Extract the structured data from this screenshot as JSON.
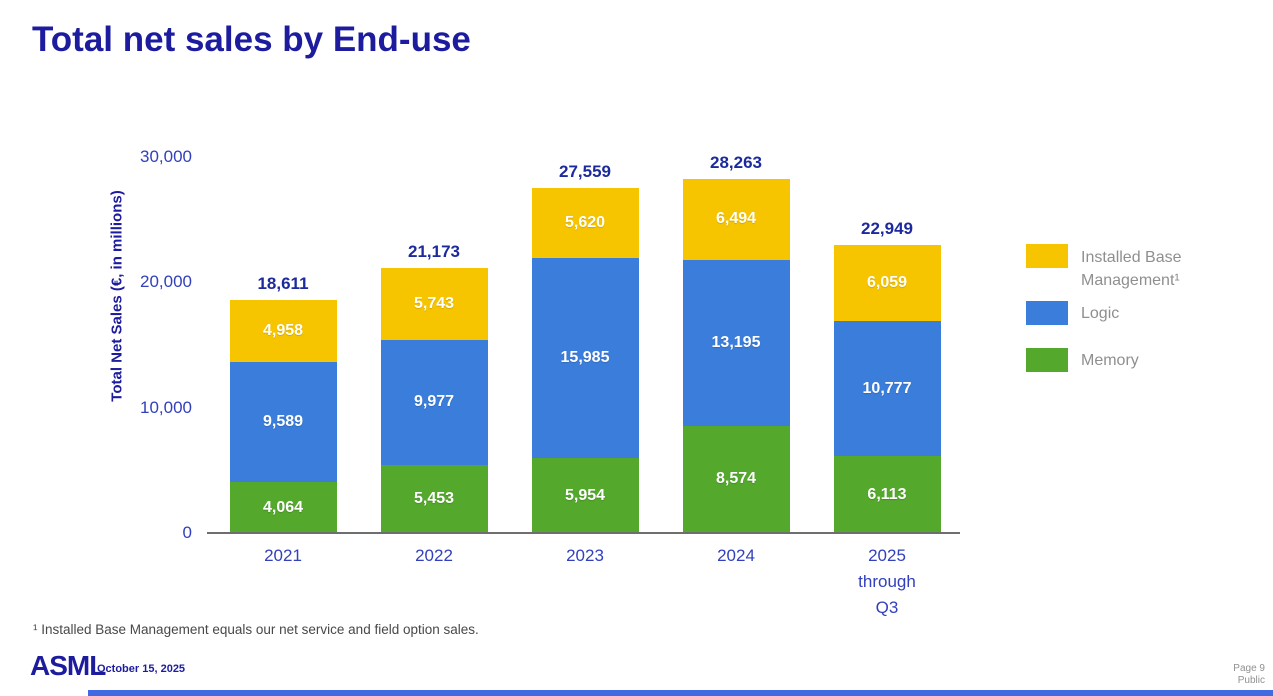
{
  "slide": {
    "title": "Total net sales by End-use",
    "footnote": "¹ Installed Base Management equals our net service and field option sales."
  },
  "chart_data": {
    "type": "bar",
    "stacked": true,
    "title": "Total net sales by End-use",
    "xlabel": "",
    "ylabel": "Total Net Sales (€, in millions)",
    "ylim": [
      0,
      30000
    ],
    "yticks": [
      0,
      10000,
      20000,
      30000
    ],
    "ytick_labels": [
      "0",
      "10,000",
      "20,000",
      "30,000"
    ],
    "grid": false,
    "legend_position": "right",
    "categories": [
      "2021",
      "2022",
      "2023",
      "2024",
      "2025 through Q3"
    ],
    "category_lines": [
      [
        "2021"
      ],
      [
        "2022"
      ],
      [
        "2023"
      ],
      [
        "2024"
      ],
      [
        "2025",
        "through",
        "Q3"
      ]
    ],
    "series": [
      {
        "name": "Memory",
        "color": "#54a82c",
        "values": [
          4064,
          5453,
          5954,
          8574,
          6113
        ],
        "labels": [
          "4,064",
          "5,453",
          "5,954",
          "8,574",
          "6,113"
        ]
      },
      {
        "name": "Logic",
        "color": "#3b7ddb",
        "values": [
          9589,
          9977,
          15985,
          13195,
          10777
        ],
        "labels": [
          "9,589",
          "9,977",
          "15,985",
          "13,195",
          "10,777"
        ]
      },
      {
        "name": "Installed Base Management",
        "color": "#f7c500",
        "values": [
          4958,
          5743,
          5620,
          6494,
          6059
        ],
        "labels": [
          "4,958",
          "5,743",
          "5,620",
          "6,494",
          "6,059"
        ]
      }
    ],
    "totals": [
      18611,
      21173,
      27559,
      28263,
      22949
    ],
    "total_labels": [
      "18,611",
      "21,173",
      "27,559",
      "28,263",
      "22,949"
    ]
  },
  "legend": {
    "items": [
      {
        "label_lines": [
          "Installed Base",
          "Management¹"
        ],
        "color": "#f7c500"
      },
      {
        "label_lines": [
          "Logic"
        ],
        "color": "#3b7ddb"
      },
      {
        "label_lines": [
          "Memory"
        ],
        "color": "#54a82c"
      }
    ]
  },
  "footer": {
    "logo": "ASML",
    "date": "October 15, 2025",
    "page": "Page 9",
    "classification": "Public"
  },
  "colors": {
    "title_navy": "#1d1c9e",
    "axis_label_blue": "#3240bd",
    "memory_green": "#54a82c",
    "logic_blue": "#3b7ddb",
    "ibm_yellow": "#f7c500",
    "bottom_bar_blue": "#4169e1",
    "legend_text_gray": "#8f8f8f"
  }
}
